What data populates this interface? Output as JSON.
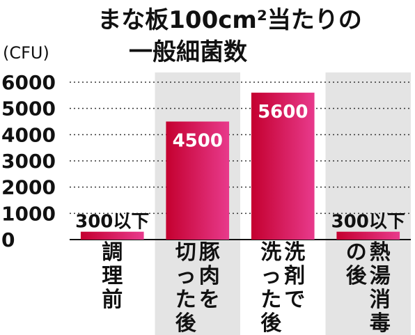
{
  "chart_data": {
    "type": "bar",
    "title_line1": "まな板100cm²当たりの",
    "title_line2": "一般細菌数",
    "unit": "(CFU)",
    "ylim": [
      0,
      6000
    ],
    "yticks": [
      0,
      1000,
      2000,
      3000,
      4000,
      5000,
      6000
    ],
    "grid": true,
    "categories": [
      "調理前",
      "豚肉を切った後",
      "洗剤で洗った後",
      "熱湯消毒の後"
    ],
    "category_columns": [
      [
        "調理前"
      ],
      [
        "豚肉を",
        "切った後"
      ],
      [
        "洗剤で",
        "洗った後"
      ],
      [
        "熱湯消毒",
        "の後"
      ]
    ],
    "values": [
      300,
      4500,
      5600,
      300
    ],
    "value_labels": [
      "300以下",
      "4500",
      "5600",
      "300以下"
    ],
    "highlighted_columns": [
      1,
      3
    ],
    "colors": {
      "bar_start": "#c4002f",
      "bar_end": "#e83a8c",
      "highlight_band": "#e4e4e4",
      "grid": "#333333"
    }
  }
}
